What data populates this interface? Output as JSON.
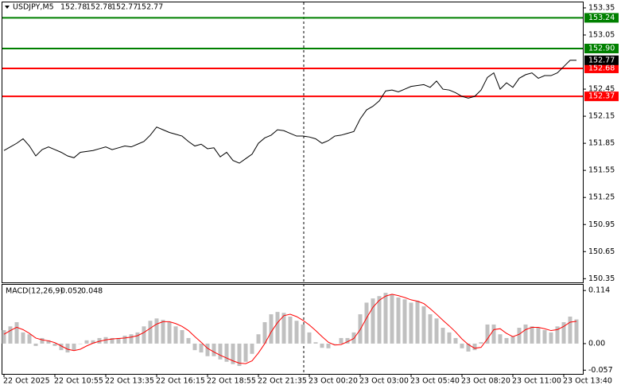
{
  "chart_data": [
    {
      "type": "line",
      "title": "USDJPY,M5",
      "ohlc": [
        152.78,
        152.78,
        152.77,
        152.77
      ],
      "color": "#000000",
      "categories": [
        "22 Oct 2025",
        null,
        null,
        null,
        null,
        null,
        null,
        null,
        "22 Oct 10:55",
        null,
        null,
        null,
        null,
        null,
        null,
        null,
        "22 Oct 13:35",
        null,
        null,
        null,
        null,
        null,
        null,
        null,
        "22 Oct 16:15",
        null,
        null,
        null,
        null,
        null,
        null,
        null,
        "22 Oct 18:55",
        null,
        null,
        null,
        null,
        null,
        null,
        null,
        "22 Oct 21:35",
        null,
        null,
        null,
        null,
        null,
        null,
        null,
        "23 Oct 00:20",
        null,
        null,
        null,
        null,
        null,
        null,
        null,
        "23 Oct 03:00",
        null,
        null,
        null,
        null,
        null,
        null,
        null,
        "23 Oct 05:40",
        null,
        null,
        null,
        null,
        null,
        null,
        null,
        "23 Oct 08:20",
        null,
        null,
        null,
        null,
        null,
        null,
        null,
        "23 Oct 11:00",
        null,
        null,
        null,
        null,
        null,
        null,
        null,
        "23 Oct 13:40",
        null,
        null
      ],
      "values": [
        151.77,
        151.81,
        151.85,
        151.9,
        151.82,
        151.71,
        151.78,
        151.81,
        151.78,
        151.75,
        151.71,
        151.69,
        151.75,
        151.76,
        151.77,
        151.79,
        151.81,
        151.78,
        151.8,
        151.82,
        151.81,
        151.84,
        151.87,
        151.94,
        152.03,
        152.0,
        151.97,
        151.95,
        151.93,
        151.87,
        151.82,
        151.84,
        151.79,
        151.8,
        151.7,
        151.75,
        151.66,
        151.63,
        151.68,
        151.73,
        151.85,
        151.91,
        151.94,
        152.0,
        151.99,
        151.96,
        151.93,
        151.93,
        151.92,
        151.9,
        151.85,
        151.88,
        151.93,
        151.94,
        151.96,
        151.98,
        152.12,
        152.22,
        152.26,
        152.32,
        152.43,
        152.44,
        152.42,
        152.45,
        152.48,
        152.49,
        152.5,
        152.47,
        152.54,
        152.45,
        152.44,
        152.41,
        152.37,
        152.35,
        152.37,
        152.44,
        152.58,
        152.63,
        152.45,
        152.52,
        152.47,
        152.57,
        152.61,
        152.63,
        152.57,
        152.6,
        152.6,
        152.63,
        152.7,
        152.77,
        152.77
      ],
      "levels": [
        {
          "value": 153.24,
          "label": "153.24",
          "color": "#008000"
        },
        {
          "value": 152.9,
          "label": "152.90",
          "color": "#008000"
        },
        {
          "value": 152.68,
          "label": "152.68",
          "color": "#ff0000"
        },
        {
          "value": 152.37,
          "label": "152.37",
          "color": "#ff0000"
        }
      ],
      "ylim": [
        150.3,
        153.42
      ],
      "yticks": [
        153.35,
        153.05,
        152.45,
        152.15,
        151.85,
        151.55,
        151.25,
        150.95,
        150.65,
        150.35
      ]
    },
    {
      "type": "macd",
      "title": "MACD(12,26,9)",
      "series": [
        {
          "color": "#c0c0c0",
          "values": [
            0.029,
            0.037,
            0.046,
            0.024,
            0.02,
            -0.005,
            0.012,
            0.007,
            -0.005,
            -0.014,
            -0.019,
            -0.014,
            0,
            0.007,
            0.007,
            0.012,
            0.014,
            0.012,
            0.012,
            0.017,
            0.02,
            0.024,
            0.037,
            0.049,
            0.054,
            0.051,
            0.046,
            0.037,
            0.029,
            0.012,
            -0.014,
            -0.019,
            -0.027,
            -0.027,
            -0.034,
            -0.039,
            -0.044,
            -0.048,
            -0.039,
            -0.022,
            0.02,
            0.046,
            0.063,
            0.068,
            0.066,
            0.058,
            0.049,
            0.041,
            0.024,
            0.003,
            -0.009,
            -0.01,
            0,
            0.012,
            0.012,
            0.024,
            0.063,
            0.088,
            0.097,
            0.102,
            0.109,
            0.105,
            0.099,
            0.095,
            0.088,
            0.092,
            0.08,
            0.063,
            0.054,
            0.034,
            0.024,
            0.012,
            -0.01,
            -0.017,
            -0.014,
            0.003,
            0.041,
            0.041,
            0.02,
            0.012,
            0.015,
            0.034,
            0.041,
            0.037,
            0.034,
            0.029,
            0.024,
            0.037,
            0.046,
            0.058,
            0.052
          ]
        },
        {
          "color": "#ff0000",
          "values": [
            0.02,
            0.028,
            0.035,
            0.03,
            0.022,
            0.012,
            0.008,
            0.006,
            0.002,
            -0.005,
            -0.012,
            -0.015,
            -0.012,
            -0.005,
            0.001,
            0.005,
            0.008,
            0.01,
            0.011,
            0.012,
            0.014,
            0.017,
            0.024,
            0.033,
            0.042,
            0.047,
            0.047,
            0.043,
            0.037,
            0.028,
            0.015,
            0.003,
            -0.01,
            -0.018,
            -0.025,
            -0.031,
            -0.037,
            -0.042,
            -0.043,
            -0.037,
            -0.02,
            0.0,
            0.025,
            0.045,
            0.06,
            0.063,
            0.058,
            0.05,
            0.04,
            0.028,
            0.015,
            0.003,
            -0.003,
            -0.002,
            0.004,
            0.011,
            0.03,
            0.055,
            0.078,
            0.093,
            0.102,
            0.106,
            0.103,
            0.099,
            0.094,
            0.091,
            0.086,
            0.075,
            0.063,
            0.05,
            0.038,
            0.025,
            0.01,
            -0.002,
            -0.01,
            -0.008,
            0.01,
            0.03,
            0.032,
            0.022,
            0.015,
            0.02,
            0.03,
            0.035,
            0.035,
            0.032,
            0.028,
            0.03,
            0.037,
            0.046,
            0.048
          ]
        }
      ],
      "ylim": [
        -0.065,
        0.128
      ],
      "yticks": [
        0.114,
        {
          "value": 0,
          "label": "0.00"
        },
        -0.057
      ]
    }
  ]
}
